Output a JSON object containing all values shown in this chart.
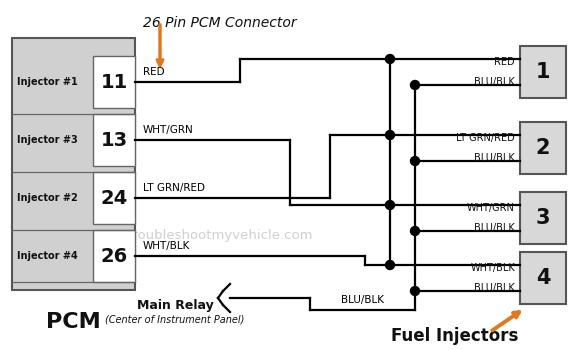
{
  "title": "26 Pin PCM Connector",
  "bg_color": "#ffffff",
  "line_color": "#000000",
  "box_face_pcm": "#d8d8d8",
  "box_face_inj": "#e0e0e0",
  "box_edge_color": "#444444",
  "dot_color": "#000000",
  "arrow_color": "#e07820",
  "text_color": "#111111",
  "watermark_color": "#cccccc",
  "pcm_label": "PCM",
  "title_text": "26 Pin PCM Connector",
  "row_labels": [
    "Injector #1",
    "Injector #3",
    "Injector #2",
    "Injector #4"
  ],
  "row_pins": [
    "11",
    "13",
    "24",
    "26"
  ],
  "wire_labels_left": [
    "RED",
    "WHT/GRN",
    "LT GRN/RED",
    "WHT/BLK"
  ],
  "inj_nums": [
    "1",
    "2",
    "3",
    "4"
  ],
  "inj_top_wires": [
    "RED",
    "LT GRN/RED",
    "WHT/GRN",
    "WHT/BLK"
  ],
  "inj_bot_wire": "BLU/BLK",
  "bus_wire_label": "BLU/BLK",
  "main_relay_label": "Main Relay",
  "main_relay_sub": "(Center of Instrument Panel)",
  "fuel_inj_label": "Fuel Injectors"
}
